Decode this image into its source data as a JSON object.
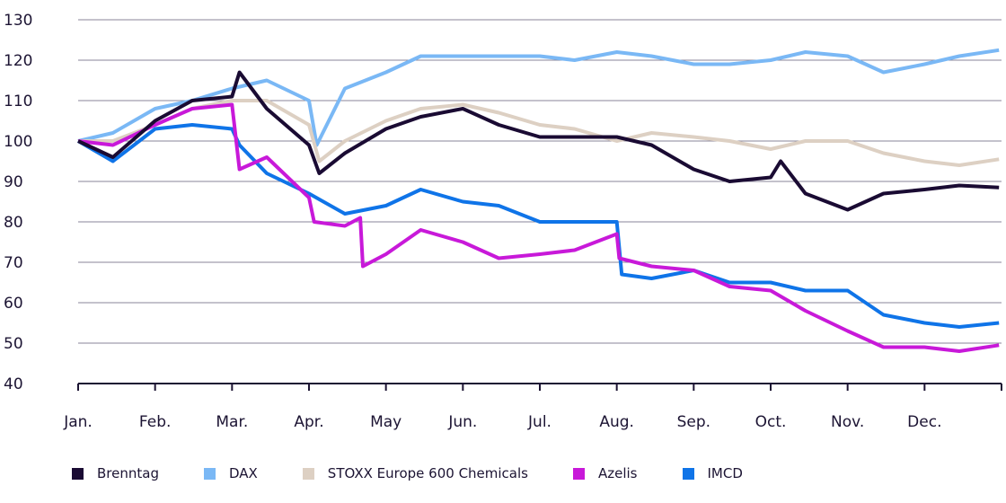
{
  "chart_data": {
    "type": "line",
    "title": "",
    "xlabel": "",
    "ylabel": "",
    "ylim": [
      40,
      130
    ],
    "yticks": [
      40,
      50,
      60,
      70,
      80,
      90,
      100,
      110,
      120,
      130
    ],
    "xtick_labels": [
      "Jan.",
      "Feb.",
      "Mar.",
      "Apr.",
      "May",
      "Jun.",
      "Jul.",
      "Aug.",
      "Sep.",
      "Oct.",
      "Nov.",
      "Dec."
    ],
    "grid": "horizontal",
    "legend_position": "bottom",
    "series": [
      {
        "name": "DAX",
        "color": "#7ab8f5",
        "points": [
          [
            "01-01",
            100
          ],
          [
            "01-15",
            102
          ],
          [
            "02-01",
            108
          ],
          [
            "02-15",
            110
          ],
          [
            "03-01",
            113
          ],
          [
            "03-15",
            115
          ],
          [
            "04-01",
            110
          ],
          [
            "04-04",
            99
          ],
          [
            "04-15",
            113
          ],
          [
            "05-01",
            117
          ],
          [
            "05-15",
            121
          ],
          [
            "06-01",
            121
          ],
          [
            "06-15",
            121
          ],
          [
            "07-01",
            121
          ],
          [
            "07-15",
            120
          ],
          [
            "08-01",
            122
          ],
          [
            "08-15",
            121
          ],
          [
            "09-01",
            119
          ],
          [
            "09-15",
            119
          ],
          [
            "10-01",
            120
          ],
          [
            "10-15",
            122
          ],
          [
            "11-01",
            121
          ],
          [
            "11-15",
            117
          ],
          [
            "12-01",
            119
          ],
          [
            "12-15",
            121
          ],
          [
            "12-31",
            122.5
          ]
        ]
      },
      {
        "name": "STOXX Europe 600 Chemicals",
        "color": "#ddd0c3",
        "points": [
          [
            "01-01",
            100
          ],
          [
            "01-15",
            100
          ],
          [
            "02-01",
            104
          ],
          [
            "02-15",
            108
          ],
          [
            "03-01",
            110
          ],
          [
            "03-15",
            110
          ],
          [
            "04-01",
            104
          ],
          [
            "04-05",
            95
          ],
          [
            "04-15",
            100
          ],
          [
            "05-01",
            105
          ],
          [
            "05-15",
            108
          ],
          [
            "06-01",
            109
          ],
          [
            "06-15",
            107
          ],
          [
            "07-01",
            104
          ],
          [
            "07-15",
            103
          ],
          [
            "08-01",
            100
          ],
          [
            "08-15",
            102
          ],
          [
            "09-01",
            101
          ],
          [
            "09-15",
            100
          ],
          [
            "10-01",
            98
          ],
          [
            "10-15",
            100
          ],
          [
            "11-01",
            100
          ],
          [
            "11-15",
            97
          ],
          [
            "12-01",
            95
          ],
          [
            "12-15",
            94
          ],
          [
            "12-31",
            95.5
          ]
        ]
      },
      {
        "name": "IMCD",
        "color": "#0f74e8",
        "points": [
          [
            "01-01",
            100
          ],
          [
            "01-15",
            95
          ],
          [
            "02-01",
            103
          ],
          [
            "02-15",
            104
          ],
          [
            "03-01",
            103
          ],
          [
            "03-04",
            99
          ],
          [
            "03-15",
            92
          ],
          [
            "04-01",
            87
          ],
          [
            "04-15",
            82
          ],
          [
            "05-01",
            84
          ],
          [
            "05-15",
            88
          ],
          [
            "06-01",
            85
          ],
          [
            "06-15",
            84
          ],
          [
            "07-01",
            80
          ],
          [
            "07-15",
            80
          ],
          [
            "08-01",
            80
          ],
          [
            "08-03",
            67
          ],
          [
            "08-15",
            66
          ],
          [
            "09-01",
            68
          ],
          [
            "09-15",
            65
          ],
          [
            "10-01",
            65
          ],
          [
            "10-15",
            63
          ],
          [
            "11-01",
            63
          ],
          [
            "11-15",
            57
          ],
          [
            "12-01",
            55
          ],
          [
            "12-15",
            54
          ],
          [
            "12-31",
            55
          ]
        ]
      },
      {
        "name": "Azelis",
        "color": "#c819d9",
        "points": [
          [
            "01-01",
            100
          ],
          [
            "01-15",
            99
          ],
          [
            "02-01",
            104
          ],
          [
            "02-15",
            108
          ],
          [
            "03-01",
            109
          ],
          [
            "03-04",
            93
          ],
          [
            "03-15",
            96
          ],
          [
            "04-01",
            86
          ],
          [
            "04-03",
            80
          ],
          [
            "04-15",
            79
          ],
          [
            "04-21",
            81
          ],
          [
            "04-22",
            69
          ],
          [
            "05-01",
            72
          ],
          [
            "05-15",
            78
          ],
          [
            "06-01",
            75
          ],
          [
            "06-15",
            71
          ],
          [
            "07-01",
            72
          ],
          [
            "07-15",
            73
          ],
          [
            "08-01",
            77
          ],
          [
            "08-02",
            71
          ],
          [
            "08-15",
            69
          ],
          [
            "09-01",
            68
          ],
          [
            "09-15",
            64
          ],
          [
            "10-01",
            63
          ],
          [
            "10-15",
            58
          ],
          [
            "11-01",
            53
          ],
          [
            "11-15",
            49
          ],
          [
            "12-01",
            49
          ],
          [
            "12-15",
            48
          ],
          [
            "12-31",
            49.5
          ]
        ]
      },
      {
        "name": "Brenntag",
        "color": "#1a0b33",
        "points": [
          [
            "01-01",
            100
          ],
          [
            "01-15",
            96
          ],
          [
            "02-01",
            105
          ],
          [
            "02-15",
            110
          ],
          [
            "03-01",
            111
          ],
          [
            "03-04",
            117
          ],
          [
            "03-15",
            108
          ],
          [
            "04-01",
            99
          ],
          [
            "04-05",
            92
          ],
          [
            "04-15",
            97
          ],
          [
            "05-01",
            103
          ],
          [
            "05-15",
            106
          ],
          [
            "06-01",
            108
          ],
          [
            "06-15",
            104
          ],
          [
            "07-01",
            101
          ],
          [
            "07-15",
            101
          ],
          [
            "08-01",
            101
          ],
          [
            "08-15",
            99
          ],
          [
            "09-01",
            93
          ],
          [
            "09-15",
            90
          ],
          [
            "10-01",
            91
          ],
          [
            "10-05",
            95
          ],
          [
            "10-15",
            87
          ],
          [
            "11-01",
            83
          ],
          [
            "11-15",
            87
          ],
          [
            "12-01",
            88
          ],
          [
            "12-15",
            89
          ],
          [
            "12-31",
            88.5
          ]
        ]
      }
    ]
  },
  "legend": [
    "Brenntag",
    "DAX",
    "STOXX Europe 600 Chemicals",
    "Azelis",
    "IMCD"
  ],
  "legend_colors": [
    "#1a0b33",
    "#7ab8f5",
    "#ddd0c3",
    "#c819d9",
    "#0f74e8"
  ]
}
